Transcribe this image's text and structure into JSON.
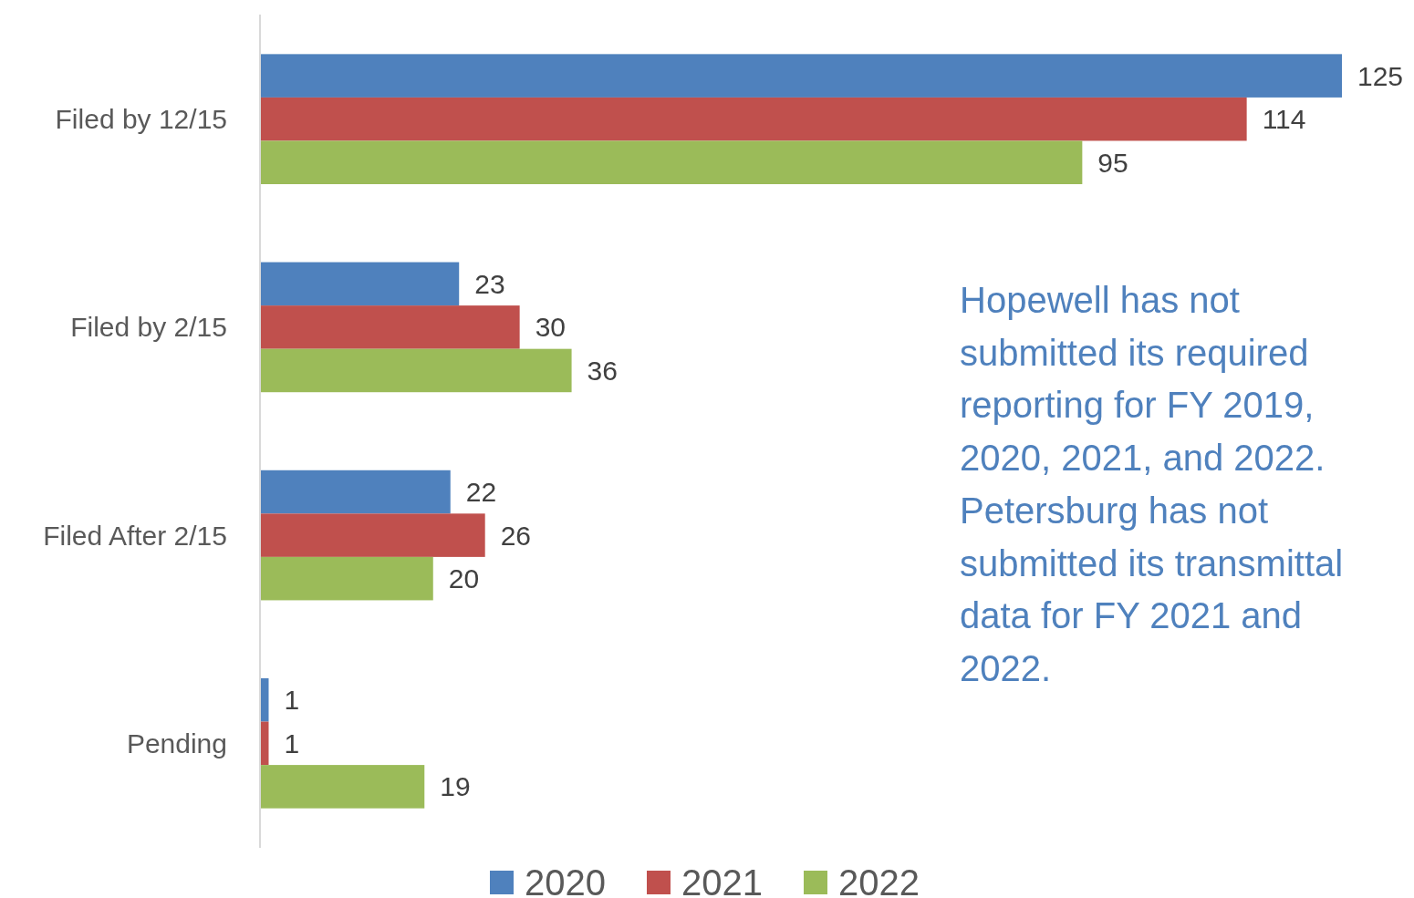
{
  "chart_data": {
    "type": "bar",
    "orientation": "horizontal",
    "categories": [
      "Filed by 12/15",
      "Filed by 2/15",
      "Filed After 2/15",
      "Pending"
    ],
    "series": [
      {
        "name": "2020",
        "color": "#4f81bd",
        "values": [
          125,
          23,
          22,
          1
        ]
      },
      {
        "name": "2021",
        "color": "#c0504d",
        "values": [
          114,
          30,
          26,
          1
        ]
      },
      {
        "name": "2022",
        "color": "#9bbb59",
        "values": [
          95,
          36,
          20,
          19
        ]
      }
    ],
    "data_labels": true,
    "legend": "bottom",
    "annotations": [
      "Hopewell has not submitted its required reporting for FY 2019, 2020, 2021, and 2022. Petersburg has not submitted its transmittal data for FY 2021 and 2022."
    ]
  }
}
